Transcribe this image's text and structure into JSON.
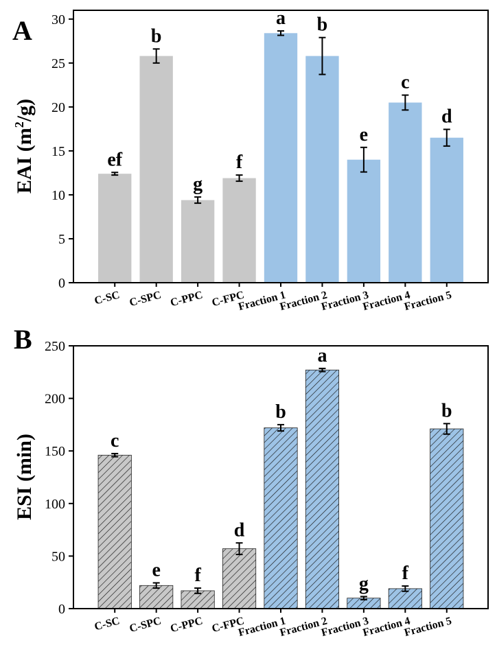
{
  "colors": {
    "gray": "#c8c8c8",
    "blue": "#9dc3e6",
    "hatch": "#1a1a1a",
    "axis": "#000000"
  },
  "chart_data": [
    {
      "type": "bar",
      "panel_label": "A",
      "ylabel_prefix": "EAI (m",
      "ylabel_sup": "2",
      "ylabel_suffix": "/g)",
      "categories": [
        "C-SC",
        "C-SPC",
        "C-PPC",
        "C-FPC",
        "Fraction 1",
        "Fraction 2",
        "Fraction 3",
        "Fraction 4",
        "Fraction 5"
      ],
      "values": [
        12.4,
        25.8,
        9.4,
        11.9,
        28.4,
        25.8,
        14.0,
        20.5,
        16.5
      ],
      "errors": [
        0.15,
        0.8,
        0.35,
        0.35,
        0.25,
        2.1,
        1.4,
        0.85,
        0.95
      ],
      "letters": [
        "ef",
        "b",
        "g",
        "f",
        "a",
        "b",
        "e",
        "c",
        "d"
      ],
      "bar_colors": [
        "gray",
        "gray",
        "gray",
        "gray",
        "blue",
        "blue",
        "blue",
        "blue",
        "blue"
      ],
      "hatched": false,
      "ylim": [
        0,
        31
      ],
      "yticks": [
        0,
        5,
        10,
        15,
        20,
        25,
        30
      ]
    },
    {
      "type": "bar",
      "panel_label": "B",
      "ylabel": "ESI (min)",
      "categories": [
        "C-SC",
        "C-SPC",
        "C-PPC",
        "C-FPC",
        "Fraction 1",
        "Fraction 2",
        "Fraction 3",
        "Fraction 4",
        "Fraction 5"
      ],
      "values": [
        146,
        22,
        17,
        57,
        172,
        227,
        10,
        19,
        171
      ],
      "errors": [
        1.5,
        2.5,
        2.5,
        5.5,
        3,
        1.5,
        1.5,
        2.5,
        5
      ],
      "letters": [
        "c",
        "e",
        "f",
        "d",
        "b",
        "a",
        "g",
        "f",
        "b"
      ],
      "bar_colors": [
        "gray",
        "gray",
        "gray",
        "gray",
        "blue",
        "blue",
        "blue",
        "blue",
        "blue"
      ],
      "hatched": true,
      "ylim": [
        0,
        250
      ],
      "yticks": [
        0,
        50,
        100,
        150,
        200,
        250
      ]
    }
  ]
}
